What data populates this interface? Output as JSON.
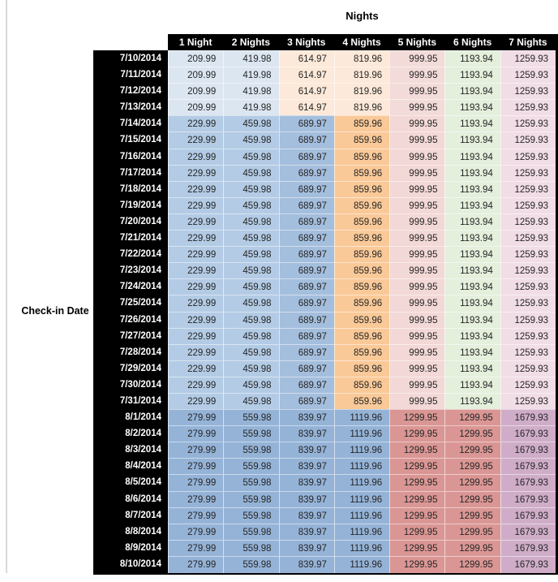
{
  "colors": {
    "header_bg": "#000000",
    "header_text": "#ffffff",
    "value_text": "#262626",
    "edge_line": "#d9d9d9",
    "tier_colors": {
      "A": [
        "#dce6f1",
        "#dce6f1",
        "#fde9d9",
        "#fde9d9",
        "#f2dbd9",
        "#e4efdc",
        "#f1dde6"
      ],
      "B": [
        "#b3cbe5",
        "#b3cbe5",
        "#a4bedd",
        "#fac998",
        "#f2d8d6",
        "#e4efdc",
        "#f1dde6"
      ],
      "C": [
        "#95b3d7",
        "#95b3d7",
        "#95b3d7",
        "#95b3d7",
        "#da9694",
        "#da9694",
        "#cfadc8"
      ]
    }
  },
  "chart_data": {
    "type": "table",
    "title": "Nights",
    "row_header_label": "Check-in Date",
    "columns": [
      "1 Night",
      "2 Nights",
      "3 Nights",
      "4 Nights",
      "5 Nights",
      "6 Nights",
      "7 Nights"
    ],
    "rows": [
      {
        "date": "7/10/2014",
        "tier": "A",
        "values": [
          "209.99",
          "419.98",
          "614.97",
          "819.96",
          "999.95",
          "1193.94",
          "1259.93"
        ]
      },
      {
        "date": "7/11/2014",
        "tier": "A",
        "values": [
          "209.99",
          "419.98",
          "614.97",
          "819.96",
          "999.95",
          "1193.94",
          "1259.93"
        ]
      },
      {
        "date": "7/12/2014",
        "tier": "A",
        "values": [
          "209.99",
          "419.98",
          "614.97",
          "819.96",
          "999.95",
          "1193.94",
          "1259.93"
        ]
      },
      {
        "date": "7/13/2014",
        "tier": "A",
        "values": [
          "209.99",
          "419.98",
          "614.97",
          "819.96",
          "999.95",
          "1193.94",
          "1259.93"
        ]
      },
      {
        "date": "7/14/2014",
        "tier": "B",
        "values": [
          "229.99",
          "459.98",
          "689.97",
          "859.96",
          "999.95",
          "1193.94",
          "1259.93"
        ]
      },
      {
        "date": "7/15/2014",
        "tier": "B",
        "values": [
          "229.99",
          "459.98",
          "689.97",
          "859.96",
          "999.95",
          "1193.94",
          "1259.93"
        ]
      },
      {
        "date": "7/16/2014",
        "tier": "B",
        "values": [
          "229.99",
          "459.98",
          "689.97",
          "859.96",
          "999.95",
          "1193.94",
          "1259.93"
        ]
      },
      {
        "date": "7/17/2014",
        "tier": "B",
        "values": [
          "229.99",
          "459.98",
          "689.97",
          "859.96",
          "999.95",
          "1193.94",
          "1259.93"
        ]
      },
      {
        "date": "7/18/2014",
        "tier": "B",
        "values": [
          "229.99",
          "459.98",
          "689.97",
          "859.96",
          "999.95",
          "1193.94",
          "1259.93"
        ]
      },
      {
        "date": "7/19/2014",
        "tier": "B",
        "values": [
          "229.99",
          "459.98",
          "689.97",
          "859.96",
          "999.95",
          "1193.94",
          "1259.93"
        ]
      },
      {
        "date": "7/20/2014",
        "tier": "B",
        "values": [
          "229.99",
          "459.98",
          "689.97",
          "859.96",
          "999.95",
          "1193.94",
          "1259.93"
        ]
      },
      {
        "date": "7/21/2014",
        "tier": "B",
        "values": [
          "229.99",
          "459.98",
          "689.97",
          "859.96",
          "999.95",
          "1193.94",
          "1259.93"
        ]
      },
      {
        "date": "7/22/2014",
        "tier": "B",
        "values": [
          "229.99",
          "459.98",
          "689.97",
          "859.96",
          "999.95",
          "1193.94",
          "1259.93"
        ]
      },
      {
        "date": "7/23/2014",
        "tier": "B",
        "values": [
          "229.99",
          "459.98",
          "689.97",
          "859.96",
          "999.95",
          "1193.94",
          "1259.93"
        ]
      },
      {
        "date": "7/24/2014",
        "tier": "B",
        "values": [
          "229.99",
          "459.98",
          "689.97",
          "859.96",
          "999.95",
          "1193.94",
          "1259.93"
        ]
      },
      {
        "date": "7/25/2014",
        "tier": "B",
        "values": [
          "229.99",
          "459.98",
          "689.97",
          "859.96",
          "999.95",
          "1193.94",
          "1259.93"
        ]
      },
      {
        "date": "7/26/2014",
        "tier": "B",
        "values": [
          "229.99",
          "459.98",
          "689.97",
          "859.96",
          "999.95",
          "1193.94",
          "1259.93"
        ]
      },
      {
        "date": "7/27/2014",
        "tier": "B",
        "values": [
          "229.99",
          "459.98",
          "689.97",
          "859.96",
          "999.95",
          "1193.94",
          "1259.93"
        ]
      },
      {
        "date": "7/28/2014",
        "tier": "B",
        "values": [
          "229.99",
          "459.98",
          "689.97",
          "859.96",
          "999.95",
          "1193.94",
          "1259.93"
        ]
      },
      {
        "date": "7/29/2014",
        "tier": "B",
        "values": [
          "229.99",
          "459.98",
          "689.97",
          "859.96",
          "999.95",
          "1193.94",
          "1259.93"
        ]
      },
      {
        "date": "7/30/2014",
        "tier": "B",
        "values": [
          "229.99",
          "459.98",
          "689.97",
          "859.96",
          "999.95",
          "1193.94",
          "1259.93"
        ]
      },
      {
        "date": "7/31/2014",
        "tier": "B",
        "values": [
          "229.99",
          "459.98",
          "689.97",
          "859.96",
          "999.95",
          "1193.94",
          "1259.93"
        ]
      },
      {
        "date": "8/1/2014",
        "tier": "C",
        "values": [
          "279.99",
          "559.98",
          "839.97",
          "1119.96",
          "1299.95",
          "1299.95",
          "1679.93"
        ]
      },
      {
        "date": "8/2/2014",
        "tier": "C",
        "values": [
          "279.99",
          "559.98",
          "839.97",
          "1119.96",
          "1299.95",
          "1299.95",
          "1679.93"
        ]
      },
      {
        "date": "8/3/2014",
        "tier": "C",
        "values": [
          "279.99",
          "559.98",
          "839.97",
          "1119.96",
          "1299.95",
          "1299.95",
          "1679.93"
        ]
      },
      {
        "date": "8/4/2014",
        "tier": "C",
        "values": [
          "279.99",
          "559.98",
          "839.97",
          "1119.96",
          "1299.95",
          "1299.95",
          "1679.93"
        ]
      },
      {
        "date": "8/5/2014",
        "tier": "C",
        "values": [
          "279.99",
          "559.98",
          "839.97",
          "1119.96",
          "1299.95",
          "1299.95",
          "1679.93"
        ]
      },
      {
        "date": "8/6/2014",
        "tier": "C",
        "values": [
          "279.99",
          "559.98",
          "839.97",
          "1119.96",
          "1299.95",
          "1299.95",
          "1679.93"
        ]
      },
      {
        "date": "8/7/2014",
        "tier": "C",
        "values": [
          "279.99",
          "559.98",
          "839.97",
          "1119.96",
          "1299.95",
          "1299.95",
          "1679.93"
        ]
      },
      {
        "date": "8/8/2014",
        "tier": "C",
        "values": [
          "279.99",
          "559.98",
          "839.97",
          "1119.96",
          "1299.95",
          "1299.95",
          "1679.93"
        ]
      },
      {
        "date": "8/9/2014",
        "tier": "C",
        "values": [
          "279.99",
          "559.98",
          "839.97",
          "1119.96",
          "1299.95",
          "1299.95",
          "1679.93"
        ]
      },
      {
        "date": "8/10/2014",
        "tier": "C",
        "values": [
          "279.99",
          "559.98",
          "839.97",
          "1119.96",
          "1299.95",
          "1299.95",
          "1679.93"
        ]
      }
    ]
  }
}
